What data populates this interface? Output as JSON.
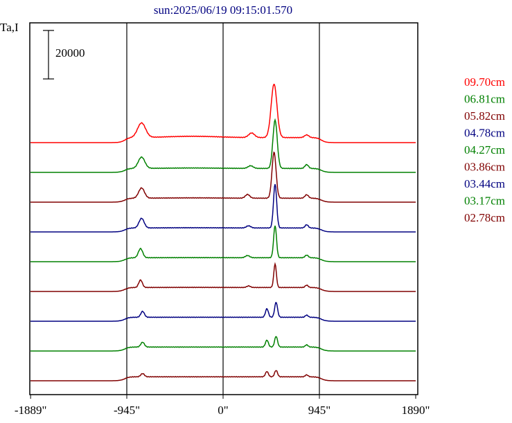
{
  "header": {
    "title": "sun:2025/06/19 09:15:01.570"
  },
  "chart_data": {
    "type": "line",
    "title": "sun:2025/06/19 09:15:01.570",
    "ylabel": "Ta,I",
    "scale_bar_label": "20000",
    "x_unit": "arcsec",
    "xlim": [
      -1890,
      1890
    ],
    "x_ticks": [
      -1889,
      -945,
      0,
      945,
      1890
    ],
    "x_tick_labels": [
      "-1889\"",
      "-945\"",
      "0\"",
      "945\"",
      "1890\""
    ],
    "vertical_lines": [
      -945,
      0,
      945
    ],
    "grid": false,
    "legend_position": "right",
    "series": [
      {
        "name": "09.70cm",
        "color": "#ff0000",
        "offset": 8,
        "limb": 0.7,
        "disk": 4.0,
        "hump": 1.2,
        "spikes": [
          [
            -800,
            13.5,
            55
          ],
          [
            280,
            4.2,
            40
          ],
          [
            500,
            50.0,
            40
          ],
          [
            820,
            2.5,
            30
          ]
        ]
      },
      {
        "name": "06.81cm",
        "color": "#008000",
        "offset": 7,
        "limb": 0.7,
        "disk": 3.0,
        "hump": 0.4,
        "spikes": [
          [
            -800,
            10.5,
            45
          ],
          [
            270,
            2.5,
            35
          ],
          [
            510,
            45.0,
            30
          ],
          [
            820,
            3.5,
            25
          ]
        ]
      },
      {
        "name": "05.82cm",
        "color": "#800000",
        "offset": 6,
        "limb": 0.7,
        "disk": 3.0,
        "hump": 0.3,
        "spikes": [
          [
            -800,
            9.5,
            40
          ],
          [
            240,
            3.5,
            30
          ],
          [
            500,
            43.0,
            28
          ],
          [
            820,
            3.2,
            25
          ]
        ]
      },
      {
        "name": "04.78cm",
        "color": "#000080",
        "offset": 5,
        "limb": 0.7,
        "disk": 3.0,
        "hump": 0.2,
        "spikes": [
          [
            -800,
            9.0,
            35
          ],
          [
            250,
            2.0,
            30
          ],
          [
            510,
            41.0,
            22
          ],
          [
            820,
            3.0,
            22
          ]
        ]
      },
      {
        "name": "04.27cm",
        "color": "#008000",
        "offset": 4,
        "limb": 0.7,
        "disk": 3.0,
        "hump": 0.1,
        "spikes": [
          [
            -810,
            8.5,
            30
          ],
          [
            240,
            2.0,
            30
          ],
          [
            510,
            30.0,
            20
          ],
          [
            820,
            2.5,
            22
          ]
        ]
      },
      {
        "name": "03.86cm",
        "color": "#800000",
        "offset": 3,
        "limb": 0.7,
        "disk": 3.0,
        "hump": 0.1,
        "spikes": [
          [
            -810,
            7.0,
            25
          ],
          [
            250,
            1.5,
            25
          ],
          [
            510,
            22.0,
            18
          ],
          [
            820,
            2.2,
            20
          ]
        ]
      },
      {
        "name": "03.44cm",
        "color": "#000080",
        "offset": 2,
        "limb": 0.7,
        "disk": 3.0,
        "hump": 0.0,
        "spikes": [
          [
            -790,
            5.5,
            25
          ],
          [
            430,
            8.0,
            20
          ],
          [
            520,
            14.0,
            20
          ],
          [
            820,
            2.0,
            20
          ]
        ]
      },
      {
        "name": "03.17cm",
        "color": "#008000",
        "offset": 1,
        "limb": 0.7,
        "disk": 3.0,
        "hump": 0.0,
        "spikes": [
          [
            -790,
            4.5,
            25
          ],
          [
            430,
            6.5,
            20
          ],
          [
            520,
            10.0,
            20
          ],
          [
            820,
            2.0,
            20
          ]
        ]
      },
      {
        "name": "02.78cm",
        "color": "#800000",
        "offset": 0,
        "limb": 0.7,
        "disk": 3.0,
        "hump": 0.0,
        "spikes": [
          [
            -790,
            3.0,
            25
          ],
          [
            430,
            5.0,
            20
          ],
          [
            520,
            6.0,
            20
          ],
          [
            820,
            1.8,
            20
          ]
        ]
      }
    ]
  }
}
